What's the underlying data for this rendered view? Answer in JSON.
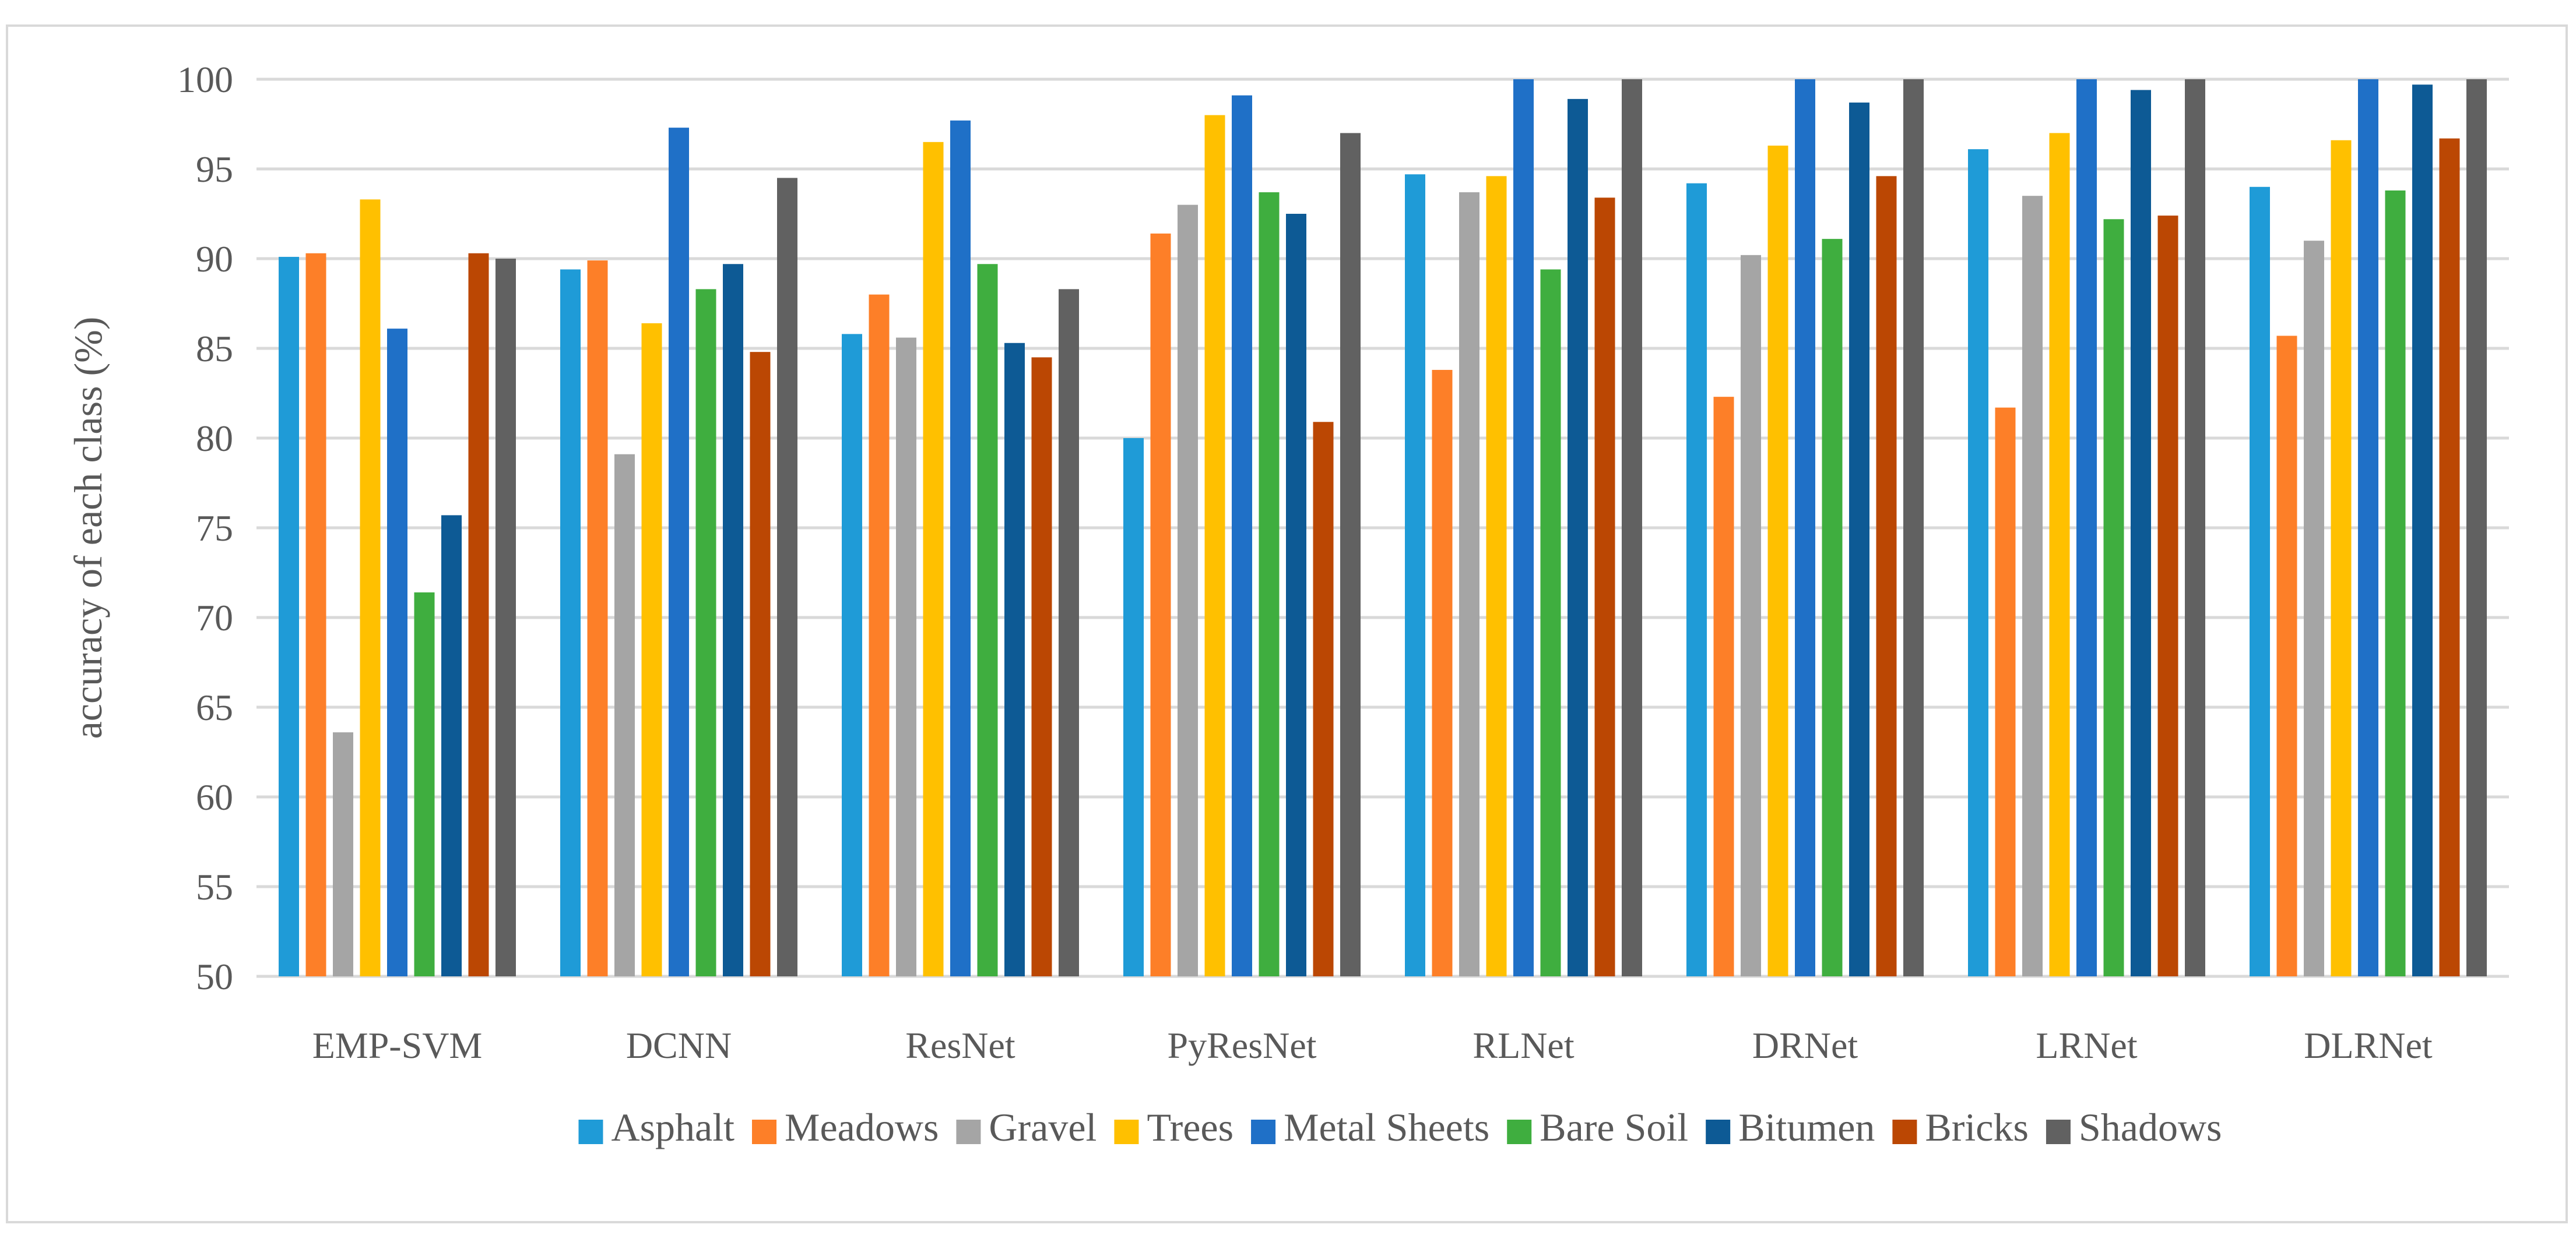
{
  "chart_data": {
    "type": "bar",
    "title": "",
    "xlabel": "",
    "ylabel": "accuracy of each class (%)",
    "ylim": [
      50,
      100
    ],
    "yticks": [
      50,
      55,
      60,
      65,
      70,
      75,
      80,
      85,
      90,
      95,
      100
    ],
    "grid": true,
    "legend_position": "bottom",
    "categories": [
      "EMP-SVM",
      "DCNN",
      "ResNet",
      "PyResNet",
      "RLNet",
      "DRNet",
      "LRNet",
      "DLRNet"
    ],
    "series": [
      {
        "name": "Asphalt",
        "color": "#1f9bd7",
        "values": [
          90.1,
          89.4,
          85.8,
          80.0,
          94.7,
          94.2,
          96.1,
          94.0
        ]
      },
      {
        "name": "Meadows",
        "color": "#fd7f28",
        "values": [
          90.3,
          89.9,
          88.0,
          91.4,
          83.8,
          82.3,
          81.7,
          85.7
        ]
      },
      {
        "name": "Gravel",
        "color": "#a5a5a5",
        "values": [
          63.6,
          79.1,
          85.6,
          93.0,
          93.7,
          90.2,
          93.5,
          91.0
        ]
      },
      {
        "name": "Trees",
        "color": "#ffc000",
        "values": [
          93.3,
          86.4,
          96.5,
          98.0,
          94.6,
          96.3,
          97.0,
          96.6
        ]
      },
      {
        "name": "Metal Sheets",
        "color": "#1f70c7",
        "values": [
          86.1,
          97.3,
          97.7,
          99.1,
          100.0,
          100.0,
          100.0,
          100.0
        ]
      },
      {
        "name": "Bare Soil",
        "color": "#3fae3f",
        "values": [
          71.4,
          88.3,
          89.7,
          93.7,
          89.4,
          91.1,
          92.2,
          93.8
        ]
      },
      {
        "name": "Bitumen",
        "color": "#0d5a95",
        "values": [
          75.7,
          89.7,
          85.3,
          92.5,
          98.9,
          98.7,
          99.4,
          99.7
        ]
      },
      {
        "name": "Bricks",
        "color": "#bb4703",
        "values": [
          90.3,
          84.8,
          84.5,
          80.9,
          93.4,
          94.6,
          92.4,
          96.7
        ]
      },
      {
        "name": "Shadows",
        "color": "#616161",
        "values": [
          90.0,
          94.5,
          88.3,
          97.0,
          100.0,
          100.0,
          100.0,
          100.0
        ]
      }
    ]
  }
}
